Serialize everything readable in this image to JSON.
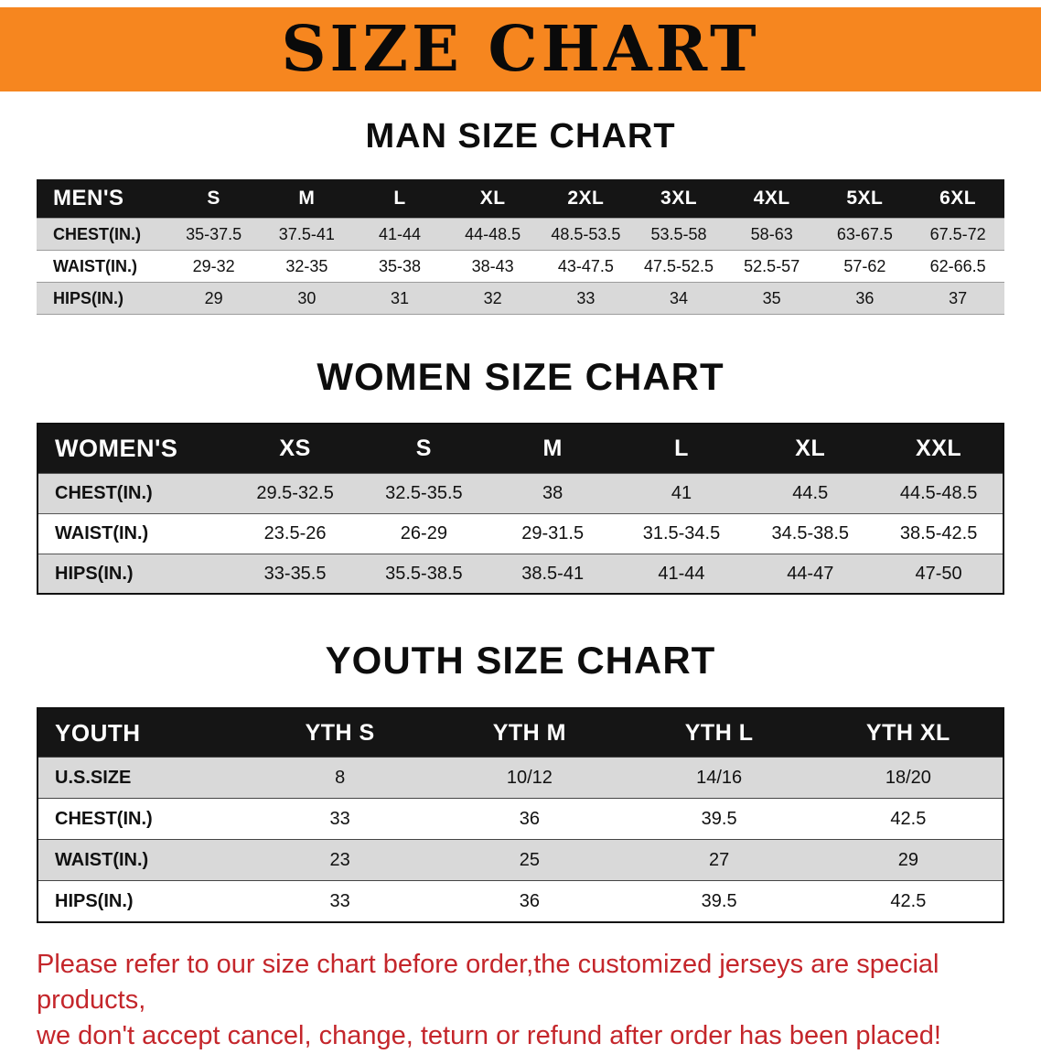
{
  "banner": {
    "title": "SIZE CHART"
  },
  "colors": {
    "banner_bg": "#f6861f",
    "header_black": "#151515",
    "row_gray": "#d9d9d9",
    "note_red": "#c4262b"
  },
  "sections": [
    {
      "heading": "MAN SIZE CHART",
      "table": {
        "header": [
          "MEN'S",
          "S",
          "M",
          "L",
          "XL",
          "2XL",
          "3XL",
          "4XL",
          "5XL",
          "6XL"
        ],
        "rows": [
          [
            "CHEST(IN.)",
            "35-37.5",
            "37.5-41",
            "41-44",
            "44-48.5",
            "48.5-53.5",
            "53.5-58",
            "58-63",
            "63-67.5",
            "67.5-72"
          ],
          [
            "WAIST(IN.)",
            "29-32",
            "32-35",
            "35-38",
            "38-43",
            "43-47.5",
            "47.5-52.5",
            "52.5-57",
            "57-62",
            "62-66.5"
          ],
          [
            "HIPS(IN.)",
            "29",
            "30",
            "31",
            "32",
            "33",
            "34",
            "35",
            "36",
            "37"
          ]
        ]
      }
    },
    {
      "heading": "WOMEN SIZE CHART",
      "table": {
        "header": [
          "WOMEN'S",
          "XS",
          "S",
          "M",
          "L",
          "XL",
          "XXL"
        ],
        "rows": [
          [
            "CHEST(IN.)",
            "29.5-32.5",
            "32.5-35.5",
            "38",
            "41",
            "44.5",
            "44.5-48.5"
          ],
          [
            "WAIST(IN.)",
            "23.5-26",
            "26-29",
            "29-31.5",
            "31.5-34.5",
            "34.5-38.5",
            "38.5-42.5"
          ],
          [
            "HIPS(IN.)",
            "33-35.5",
            "35.5-38.5",
            "38.5-41",
            "41-44",
            "44-47",
            "47-50"
          ]
        ]
      }
    },
    {
      "heading": "YOUTH SIZE CHART",
      "table": {
        "header": [
          "YOUTH",
          "YTH S",
          "YTH M",
          "YTH L",
          "YTH XL"
        ],
        "rows": [
          [
            "U.S.SIZE",
            "8",
            "10/12",
            "14/16",
            "18/20"
          ],
          [
            "CHEST(IN.)",
            "33",
            "36",
            "39.5",
            "42.5"
          ],
          [
            "WAIST(IN.)",
            "23",
            "25",
            "27",
            "29"
          ],
          [
            "HIPS(IN.)",
            "33",
            "36",
            "39.5",
            "42.5"
          ]
        ]
      }
    }
  ],
  "footer": {
    "lines": [
      "Please refer to our size chart before order,the customized jerseys are special products,",
      "we don't accept cancel, change, teturn or refund after order has been placed!"
    ]
  }
}
